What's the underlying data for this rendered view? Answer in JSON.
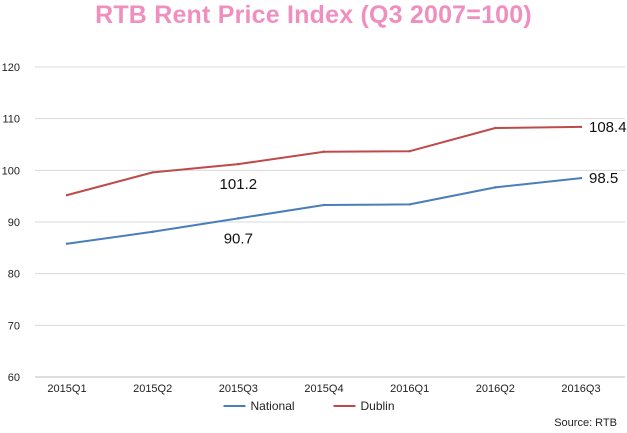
{
  "chart_data": {
    "type": "line",
    "title": "RTB Rent Price Index (Q3 2007=100)",
    "categories": [
      "2015Q1",
      "2015Q2",
      "2015Q3",
      "2015Q4",
      "2016Q1",
      "2016Q2",
      "2016Q3"
    ],
    "series": [
      {
        "name": "National",
        "color": "#4a7ebb",
        "values": [
          85.8,
          88.1,
          90.7,
          93.3,
          93.4,
          96.7,
          98.5
        ]
      },
      {
        "name": "Dublin",
        "color": "#be4b48",
        "values": [
          95.2,
          99.6,
          101.2,
          103.6,
          103.7,
          108.2,
          108.4
        ]
      }
    ],
    "annotations": [
      {
        "series": "Dublin",
        "category": "2015Q3",
        "text": "101.2"
      },
      {
        "series": "National",
        "category": "2015Q3",
        "text": "90.7"
      },
      {
        "series": "Dublin",
        "category": "2016Q3",
        "text": "108.4"
      },
      {
        "series": "National",
        "category": "2016Q3",
        "text": "98.5"
      }
    ],
    "ylim": [
      60,
      120
    ],
    "yticks": [
      60,
      70,
      80,
      90,
      100,
      110,
      120
    ],
    "xlabel": "",
    "ylabel": "",
    "grid": true,
    "legend": "bottom-center",
    "source": "Source: RTB"
  }
}
